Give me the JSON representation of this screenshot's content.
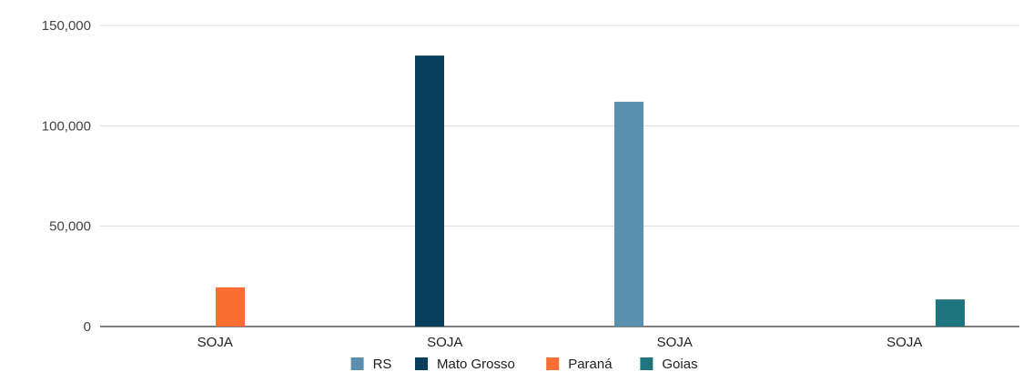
{
  "chart_data": {
    "type": "bar",
    "categories": [
      "SOJA",
      "SOJA",
      "SOJA",
      "SOJA"
    ],
    "series": [
      {
        "name": "RS",
        "color": "#5b8fb0",
        "values": [
          null,
          null,
          112000,
          null
        ]
      },
      {
        "name": "Mato Grosso",
        "color": "#073f5c",
        "values": [
          null,
          135000,
          null,
          null
        ]
      },
      {
        "name": "Paraná",
        "color": "#fb6e33",
        "values": [
          19500,
          null,
          null,
          null
        ]
      },
      {
        "name": "Goias",
        "color": "#1e7580",
        "values": [
          null,
          null,
          null,
          13500
        ]
      }
    ],
    "yticks": [
      "0",
      "50,000",
      "100,000",
      "150,000"
    ],
    "ytick_values": [
      0,
      50000,
      100000,
      150000
    ],
    "ylim": [
      0,
      150000
    ],
    "grid": true,
    "legend_position": "bottom"
  }
}
